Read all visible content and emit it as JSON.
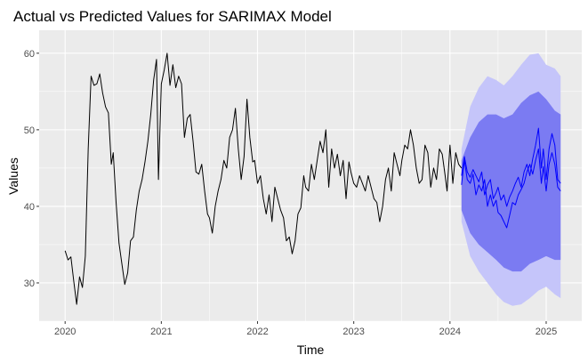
{
  "chart_data": {
    "type": "line",
    "title": "Actual vs Predicted Values for SARIMAX Model",
    "xlabel": "Time",
    "ylabel": "Values",
    "xlim": [
      2019.73,
      2025.37
    ],
    "ylim": [
      25,
      63
    ],
    "x_ticks": [
      2020,
      2021,
      2022,
      2023,
      2024,
      2025
    ],
    "x_tick_labels": [
      "2020",
      "2021",
      "2022",
      "2023",
      "2024",
      "2025"
    ],
    "y_ticks": [
      30,
      40,
      50,
      60
    ],
    "y_tick_labels": [
      "30",
      "40",
      "50",
      "60"
    ],
    "grid": true,
    "legend": "none",
    "colors": {
      "panel": "#ebebeb",
      "grid": "#ffffff",
      "actual": "#000000",
      "forecast": "#0000ff",
      "band80": "#7b7bf2",
      "band95": "#c5c5fa"
    },
    "series": [
      {
        "x": [
          2020.0,
          2020.03,
          2020.06,
          2020.09,
          2020.12,
          2020.15,
          2020.18,
          2020.21,
          2020.24,
          2020.27,
          2020.3,
          2020.33,
          2020.36,
          2020.39,
          2020.42,
          2020.45,
          2020.48,
          2020.5,
          2020.53,
          2020.56,
          2020.59,
          2020.62,
          2020.65,
          2020.68,
          2020.71,
          2020.74,
          2020.77,
          2020.8,
          2020.83,
          2020.86,
          2020.89,
          2020.92,
          2020.95,
          2020.97,
          2021.0,
          2021.03,
          2021.06,
          2021.09,
          2021.12,
          2021.15,
          2021.18,
          2021.21,
          2021.24,
          2021.27,
          2021.3,
          2021.33,
          2021.36,
          2021.39,
          2021.42,
          2021.45,
          2021.48,
          2021.5,
          2021.53,
          2021.56,
          2021.59,
          2021.62,
          2021.65,
          2021.68,
          2021.71,
          2021.74,
          2021.77,
          2021.8,
          2021.83,
          2021.86,
          2021.89,
          2021.92,
          2021.95,
          2021.97,
          2022.0,
          2022.03,
          2022.06,
          2022.09,
          2022.12,
          2022.15,
          2022.18,
          2022.21,
          2022.24,
          2022.27,
          2022.3,
          2022.33,
          2022.36,
          2022.39,
          2022.42,
          2022.45,
          2022.48,
          2022.5,
          2022.53,
          2022.56,
          2022.59,
          2022.62,
          2022.65,
          2022.68,
          2022.71,
          2022.74,
          2022.77,
          2022.8,
          2022.83,
          2022.86,
          2022.89,
          2022.92,
          2022.95,
          2022.97,
          2023.0,
          2023.03,
          2023.06,
          2023.09,
          2023.12,
          2023.15,
          2023.18,
          2023.21,
          2023.24,
          2023.27,
          2023.3,
          2023.33,
          2023.36,
          2023.39,
          2023.42,
          2023.45,
          2023.48,
          2023.5,
          2023.53,
          2023.56,
          2023.59,
          2023.62,
          2023.65,
          2023.68,
          2023.71,
          2023.74,
          2023.77,
          2023.8,
          2023.83,
          2023.86,
          2023.89,
          2023.92,
          2023.95,
          2023.97,
          2024.0,
          2024.03,
          2024.06,
          2024.09,
          2024.12
        ],
        "values": [
          34.2,
          33.0,
          33.4,
          30.2,
          27.2,
          30.8,
          29.4,
          33.5,
          47.5,
          57.0,
          55.8,
          56.0,
          57.3,
          54.8,
          53.0,
          52.2,
          45.5,
          47.0,
          40.5,
          35.2,
          32.5,
          29.8,
          31.3,
          35.5,
          36.0,
          39.5,
          42.0,
          43.5,
          45.8,
          48.5,
          52.0,
          56.5,
          59.2,
          43.5,
          56.0,
          57.8,
          60.0,
          55.8,
          58.5,
          55.5,
          57.0,
          56.0,
          49.0,
          51.5,
          52.0,
          48.5,
          44.5,
          44.2,
          45.5,
          42.0,
          39.0,
          38.5,
          36.5,
          40.0,
          42.0,
          43.5,
          46.0,
          45.0,
          49.0,
          50.0,
          52.8,
          47.5,
          43.5,
          46.5,
          54.0,
          49.0,
          45.8,
          46.0,
          43.0,
          44.0,
          41.0,
          39.0,
          41.5,
          38.0,
          42.5,
          41.0,
          39.5,
          38.5,
          35.5,
          36.0,
          33.8,
          35.5,
          39.0,
          39.8,
          44.0,
          42.5,
          42.0,
          45.5,
          43.5,
          46.0,
          48.5,
          47.0,
          50.0,
          42.5,
          47.5,
          45.0,
          46.8,
          44.0,
          46.0,
          41.0,
          45.8,
          44.5,
          43.0,
          42.5,
          44.0,
          43.0,
          42.0,
          44.0,
          42.5,
          41.0,
          40.5,
          38.0,
          40.0,
          43.5,
          45.0,
          42.0,
          47.0,
          45.5,
          44.0,
          46.0,
          48.0,
          47.5,
          50.0,
          48.0,
          45.0,
          43.0,
          43.5,
          48.0,
          47.0,
          42.5,
          45.0,
          43.5,
          47.5,
          46.8,
          44.0,
          42.0,
          48.0,
          43.0,
          47.0,
          45.5,
          45.0
        ],
        "color": "#000000"
      },
      {
        "x": [
          2024.12,
          2024.15,
          2024.18,
          2024.21,
          2024.24,
          2024.27,
          2024.3,
          2024.33,
          2024.36,
          2024.39,
          2024.42,
          2024.45,
          2024.48,
          2024.5,
          2024.53,
          2024.56,
          2024.59,
          2024.62,
          2024.65,
          2024.68,
          2024.71,
          2024.74,
          2024.77,
          2024.8,
          2024.83,
          2024.86,
          2024.89,
          2024.92,
          2024.95,
          2024.97,
          2025.0,
          2025.03,
          2025.06,
          2025.09,
          2025.12,
          2025.15
        ],
        "values": [
          44.0,
          46.5,
          44.5,
          43.8,
          44.8,
          44.0,
          43.2,
          44.5,
          41.5,
          42.8,
          43.5,
          41.0,
          41.8,
          42.5,
          40.8,
          41.5,
          40.0,
          41.2,
          42.0,
          43.0,
          43.8,
          42.5,
          44.5,
          45.5,
          44.0,
          46.2,
          48.0,
          50.2,
          45.0,
          47.5,
          43.5,
          47.5,
          49.5,
          48.0,
          43.5,
          43.0
        ],
        "color": "#0000ff"
      },
      {
        "x": [
          2024.12,
          2024.15,
          2024.18,
          2024.21,
          2024.24,
          2024.27,
          2024.3,
          2024.33,
          2024.36,
          2024.39,
          2024.42,
          2024.45,
          2024.48,
          2024.5,
          2024.53,
          2024.56,
          2024.59,
          2024.62,
          2024.65,
          2024.68,
          2024.71,
          2024.74,
          2024.77,
          2024.8,
          2024.83,
          2024.86,
          2024.89,
          2024.92,
          2024.95,
          2024.97,
          2025.0,
          2025.03,
          2025.06,
          2025.09,
          2025.12,
          2025.15
        ],
        "values": [
          42.8,
          46.0,
          43.5,
          43.0,
          44.2,
          41.5,
          42.8,
          42.0,
          43.5,
          40.0,
          41.5,
          40.0,
          40.8,
          39.2,
          38.8,
          38.0,
          37.2,
          38.8,
          40.5,
          40.2,
          41.5,
          42.2,
          43.0,
          44.5,
          45.5,
          44.2,
          46.0,
          47.5,
          43.0,
          45.2,
          42.0,
          45.5,
          47.0,
          45.5,
          42.5,
          42.0
        ],
        "color": "#0000ff"
      }
    ],
    "bands": [
      {
        "level": "95",
        "x": [
          2024.12,
          2024.21,
          2024.3,
          2024.39,
          2024.48,
          2024.56,
          2024.65,
          2024.74,
          2024.83,
          2024.92,
          2025.0,
          2025.09,
          2025.15
        ],
        "lower": [
          38.0,
          33.5,
          31.5,
          30.0,
          28.5,
          27.5,
          27.0,
          27.2,
          28.0,
          29.0,
          29.5,
          28.5,
          28.0
        ],
        "upper": [
          47.5,
          53.0,
          55.5,
          57.0,
          56.5,
          55.8,
          57.0,
          58.5,
          59.8,
          60.0,
          58.5,
          58.0,
          57.0
        ],
        "color": "#c5c5fa"
      },
      {
        "level": "80",
        "x": [
          2024.12,
          2024.21,
          2024.3,
          2024.39,
          2024.48,
          2024.56,
          2024.65,
          2024.74,
          2024.83,
          2024.92,
          2025.0,
          2025.09,
          2025.15
        ],
        "lower": [
          39.5,
          36.5,
          35.0,
          34.0,
          33.0,
          32.0,
          31.5,
          31.5,
          32.5,
          33.0,
          33.5,
          33.0,
          33.0
        ],
        "upper": [
          46.0,
          49.0,
          51.0,
          52.0,
          52.0,
          51.5,
          52.0,
          53.5,
          54.5,
          55.0,
          54.0,
          52.5,
          52.0
        ],
        "color": "#7b7bf2"
      }
    ]
  }
}
